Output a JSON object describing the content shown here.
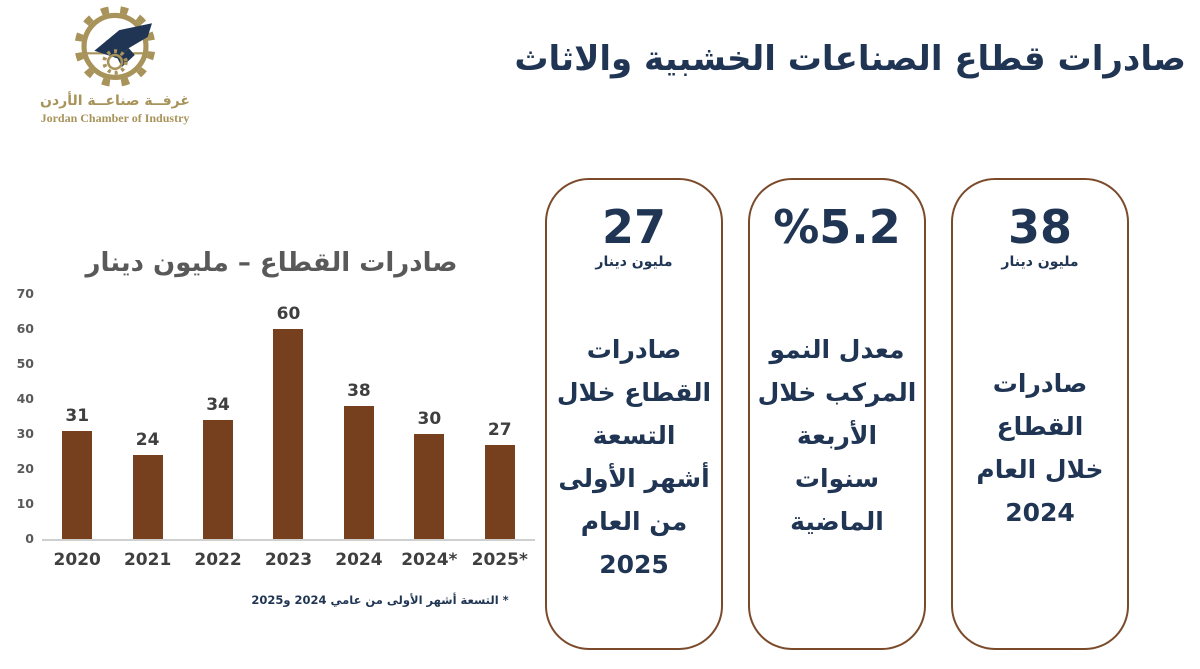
{
  "header": {
    "title": "صادرات قطاع الصناعات الخشبية والاثاث",
    "logo": {
      "arabic_name": "غرفــة صناعــة الأردن",
      "english_name": "Jordan Chamber of Industry"
    }
  },
  "chart_data": {
    "type": "bar",
    "title": "صادرات القطاع – مليون دينار",
    "categories": [
      "2020",
      "2021",
      "2022",
      "2023",
      "2024",
      "2024*",
      "2025*"
    ],
    "values": [
      31,
      24,
      34,
      60,
      38,
      30,
      27
    ],
    "ymax": 70,
    "yticks": [
      0,
      10,
      20,
      30,
      40,
      50,
      60,
      70
    ],
    "grid": "off",
    "footnote": "* التسعة أشهر الأولى من عامي 2024 و2025"
  },
  "cards": [
    {
      "number": "27",
      "unit": "مليون دينار",
      "body": [
        "صادرات",
        "القطاع خلال",
        "التسعة",
        "أشهر الأولى",
        "من العام",
        "2025"
      ]
    },
    {
      "number": "%5.2",
      "unit": "",
      "body": [
        "معدل النمو",
        "المركب خلال",
        "الأربعة",
        "سنوات",
        "الماضية"
      ]
    },
    {
      "number": "38",
      "unit": "مليون دينار",
      "body": [
        "صادرات",
        "القطاع",
        "خلال العام",
        "2024"
      ]
    }
  ],
  "colors": {
    "navy": "#1F3553",
    "bar_brown": "#76401F",
    "card_border_brown": "#7B4A2B",
    "logo_gold": "#A8935A",
    "chart_gray": "#595959",
    "label_gray": "#3F3F3F"
  }
}
